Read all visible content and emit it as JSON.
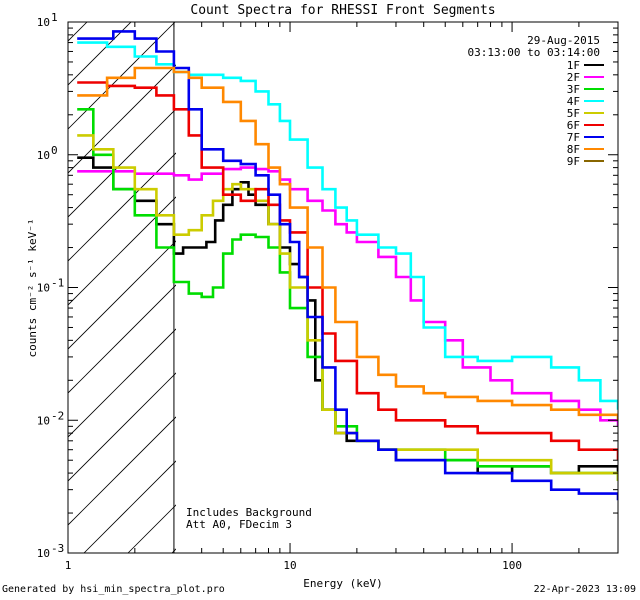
{
  "chart_data": {
    "type": "line",
    "title": "Count Spectra for RHESSI Front Segments",
    "xlabel": "Energy (keV)",
    "ylabel": "counts cm⁻² s⁻¹ keV⁻¹",
    "xscale": "log",
    "yscale": "log",
    "xlim": [
      1,
      300
    ],
    "ylim": [
      0.001,
      10
    ],
    "x_tick_labels": [
      {
        "v": 1,
        "label": "1"
      },
      {
        "v": 10,
        "label": "10"
      },
      {
        "v": 100,
        "label": "100"
      }
    ],
    "y_tick_labels": [
      {
        "v": 10,
        "base": "10",
        "exp": "1"
      },
      {
        "v": 1,
        "base": "10",
        "exp": "0"
      },
      {
        "v": 0.1,
        "base": "10",
        "exp": "-1"
      },
      {
        "v": 0.01,
        "base": "10",
        "exp": "-2"
      },
      {
        "v": 0.001,
        "base": "10",
        "exp": "-3"
      }
    ],
    "attenuator_cutoff_kev": 3,
    "date": "29-Aug-2015",
    "time_range": "03:13:00 to 03:14:00",
    "annotations": [
      "Includes Background",
      "Att A0, FDecim 3"
    ],
    "legend_position": "top-right",
    "series": [
      {
        "name": "1F",
        "color": "#000000",
        "x": [
          1.1,
          1.3,
          1.6,
          2.0,
          2.5,
          3.0,
          3.3,
          3.8,
          4.2,
          4.6,
          5.0,
          5.5,
          6.0,
          6.5,
          7.0,
          8.0,
          9.0,
          10,
          11,
          12,
          13,
          14,
          16,
          18,
          20,
          25,
          30,
          40,
          50,
          70,
          100,
          150,
          200,
          300
        ],
        "y": [
          0.95,
          0.8,
          0.55,
          0.45,
          0.3,
          0.18,
          0.2,
          0.2,
          0.22,
          0.32,
          0.42,
          0.55,
          0.62,
          0.5,
          0.42,
          0.3,
          0.2,
          0.15,
          0.12,
          0.08,
          0.02,
          0.012,
          0.008,
          0.007,
          0.007,
          0.006,
          0.005,
          0.005,
          0.005,
          0.004,
          0.0045,
          0.004,
          0.0045,
          0.004
        ]
      },
      {
        "name": "2F",
        "color": "#ff00ff",
        "x": [
          1.1,
          1.5,
          2.0,
          2.5,
          3.0,
          3.5,
          4,
          5,
          6,
          7,
          8,
          9,
          10,
          12,
          14,
          16,
          18,
          20,
          25,
          30,
          35,
          40,
          50,
          60,
          80,
          100,
          150,
          200,
          250,
          300
        ],
        "y": [
          0.75,
          0.75,
          0.72,
          0.72,
          0.7,
          0.65,
          0.72,
          0.78,
          0.8,
          0.78,
          0.75,
          0.65,
          0.55,
          0.45,
          0.38,
          0.3,
          0.26,
          0.22,
          0.17,
          0.12,
          0.08,
          0.055,
          0.04,
          0.025,
          0.02,
          0.016,
          0.014,
          0.012,
          0.01,
          0.009
        ]
      },
      {
        "name": "3F",
        "color": "#00dd00",
        "x": [
          1.1,
          1.3,
          1.6,
          2.0,
          2.5,
          3.0,
          3.5,
          4,
          4.5,
          5,
          5.5,
          6,
          7,
          8,
          9,
          10,
          12,
          14,
          16,
          20,
          25,
          30,
          40,
          50,
          70,
          100,
          150,
          200,
          300
        ],
        "y": [
          2.2,
          1.0,
          0.55,
          0.35,
          0.2,
          0.11,
          0.09,
          0.085,
          0.1,
          0.18,
          0.23,
          0.25,
          0.24,
          0.2,
          0.13,
          0.07,
          0.03,
          0.012,
          0.009,
          0.007,
          0.006,
          0.006,
          0.006,
          0.005,
          0.0045,
          0.0045,
          0.004,
          0.004,
          0.0035
        ]
      },
      {
        "name": "4F",
        "color": "#00ffff",
        "x": [
          1.1,
          1.5,
          2.0,
          2.5,
          3.0,
          3.5,
          4,
          5,
          6,
          7,
          8,
          9,
          10,
          12,
          14,
          16,
          18,
          20,
          25,
          30,
          35,
          40,
          50,
          70,
          100,
          150,
          200,
          250,
          300
        ],
        "y": [
          7.0,
          6.5,
          5.5,
          4.8,
          4.2,
          4.0,
          4.0,
          3.8,
          3.6,
          3.0,
          2.4,
          1.8,
          1.3,
          0.8,
          0.55,
          0.4,
          0.32,
          0.25,
          0.2,
          0.18,
          0.12,
          0.05,
          0.03,
          0.028,
          0.03,
          0.025,
          0.02,
          0.014,
          0.012
        ]
      },
      {
        "name": "5F",
        "color": "#cccc00",
        "x": [
          1.1,
          1.3,
          1.6,
          2.0,
          2.5,
          3.0,
          3.5,
          4,
          4.5,
          5,
          5.5,
          6,
          7,
          8,
          9,
          10,
          12,
          14,
          16,
          20,
          25,
          30,
          40,
          50,
          70,
          100,
          150,
          200,
          300
        ],
        "y": [
          1.4,
          1.1,
          0.8,
          0.55,
          0.35,
          0.25,
          0.27,
          0.35,
          0.45,
          0.55,
          0.6,
          0.55,
          0.45,
          0.3,
          0.18,
          0.1,
          0.04,
          0.012,
          0.008,
          0.007,
          0.006,
          0.006,
          0.006,
          0.006,
          0.005,
          0.005,
          0.004,
          0.004,
          0.0035
        ]
      },
      {
        "name": "6F",
        "color": "#ee0000",
        "x": [
          1.1,
          1.5,
          2.0,
          2.5,
          3.0,
          3.5,
          4,
          5,
          6,
          7,
          8,
          9,
          10,
          12,
          14,
          16,
          20,
          25,
          30,
          40,
          50,
          70,
          100,
          150,
          200,
          300
        ],
        "y": [
          3.5,
          3.3,
          3.2,
          2.8,
          2.2,
          1.4,
          0.8,
          0.5,
          0.45,
          0.55,
          0.42,
          0.32,
          0.26,
          0.1,
          0.045,
          0.028,
          0.016,
          0.012,
          0.01,
          0.01,
          0.009,
          0.008,
          0.008,
          0.007,
          0.006,
          0.005
        ]
      },
      {
        "name": "7F",
        "color": "#0000ee",
        "x": [
          1.1,
          1.3,
          1.6,
          2.0,
          2.5,
          3.0,
          3.5,
          4,
          5,
          6,
          7,
          8,
          9,
          10,
          11,
          12,
          14,
          16,
          18,
          20,
          25,
          30,
          40,
          50,
          70,
          100,
          150,
          200,
          300
        ],
        "y": [
          7.5,
          7.5,
          8.5,
          7.5,
          6.0,
          4.5,
          2.2,
          1.1,
          0.9,
          0.85,
          0.7,
          0.5,
          0.3,
          0.22,
          0.12,
          0.06,
          0.025,
          0.012,
          0.008,
          0.007,
          0.006,
          0.005,
          0.005,
          0.004,
          0.004,
          0.0035,
          0.003,
          0.0028,
          0.0025
        ]
      },
      {
        "name": "8F",
        "color": "#ff8800",
        "x": [
          1.1,
          1.5,
          2.0,
          2.5,
          3.0,
          3.5,
          4,
          5,
          6,
          7,
          8,
          9,
          10,
          12,
          14,
          16,
          20,
          25,
          30,
          40,
          50,
          70,
          100,
          150,
          200,
          300
        ],
        "y": [
          2.8,
          3.8,
          4.5,
          4.5,
          4.2,
          3.8,
          3.2,
          2.5,
          1.8,
          1.2,
          0.8,
          0.6,
          0.4,
          0.2,
          0.1,
          0.055,
          0.03,
          0.022,
          0.018,
          0.016,
          0.015,
          0.014,
          0.013,
          0.012,
          0.011,
          0.01
        ]
      },
      {
        "name": "9F",
        "color": "#886600",
        "x": [],
        "y": []
      }
    ]
  }
}
